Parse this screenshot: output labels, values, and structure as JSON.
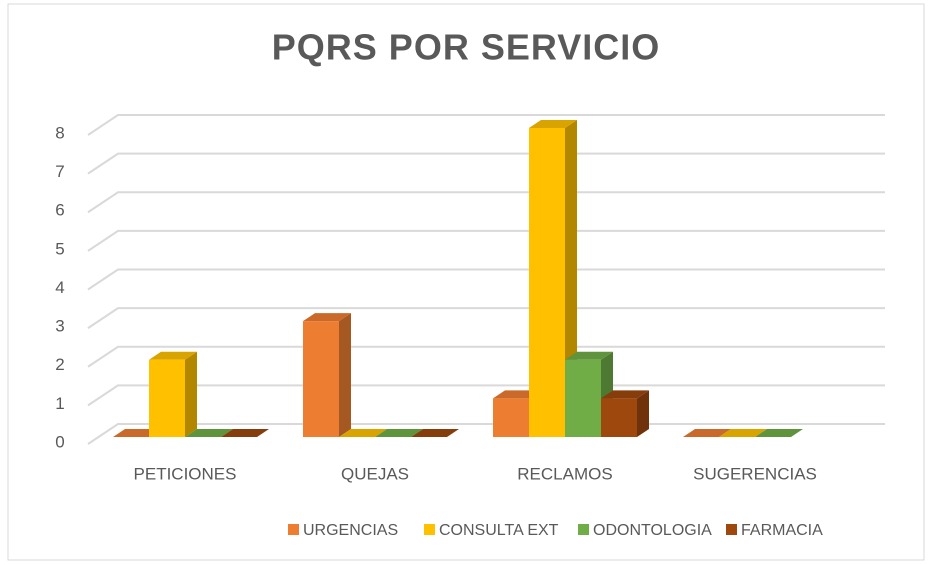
{
  "chart_data": {
    "type": "bar3d",
    "title": "PQRS POR SERVICIO",
    "categories": [
      "PETICIONES",
      "QUEJAS",
      "RECLAMOS",
      "SUGERENCIAS"
    ],
    "series": [
      {
        "name": "URGENCIAS",
        "color": "#ed7d31",
        "values": [
          0,
          3,
          1,
          0
        ]
      },
      {
        "name": "CONSULTA EXT",
        "color": "#ffc000",
        "values": [
          2,
          0,
          8,
          0
        ]
      },
      {
        "name": "ODONTOLOGIA",
        "color": "#70ad47",
        "values": [
          0,
          0,
          2,
          0
        ]
      },
      {
        "name": "FARMACIA",
        "color": "#9e480e",
        "values": [
          0,
          0,
          1,
          null
        ]
      }
    ],
    "ylim": [
      0,
      8
    ],
    "yticks": [
      0,
      1,
      2,
      3,
      4,
      5,
      6,
      7,
      8
    ],
    "grid": true,
    "legend": "bottom"
  }
}
